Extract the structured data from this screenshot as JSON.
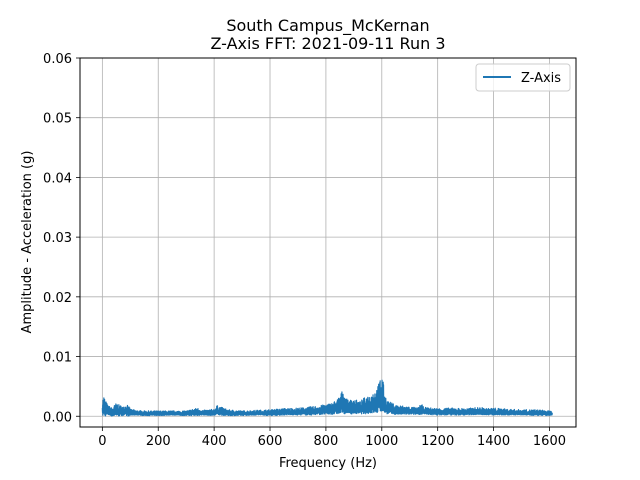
{
  "chart_data": {
    "type": "line",
    "title_line1": "South Campus_McKernan",
    "title_line2": "Z-Axis FFT: 2021-09-11 Run 3",
    "xlabel": "Frequency (Hz)",
    "ylabel": "Amplitude - Acceleration (g)",
    "xlim": [
      -80,
      1695
    ],
    "ylim": [
      -0.0018,
      0.06
    ],
    "xticks": [
      0,
      200,
      400,
      600,
      800,
      1000,
      1200,
      1400,
      1600
    ],
    "xtick_labels": [
      "0",
      "200",
      "400",
      "600",
      "800",
      "1000",
      "1200",
      "1400",
      "1600"
    ],
    "yticks": [
      0.0,
      0.01,
      0.02,
      0.03,
      0.04,
      0.05,
      0.06
    ],
    "ytick_labels": [
      "0.00",
      "0.01",
      "0.02",
      "0.03",
      "0.04",
      "0.05",
      "0.06"
    ],
    "grid": true,
    "legend_position": "top-right",
    "series": [
      {
        "name": "Z-Axis",
        "color": "#1f77b4",
        "envelope_x": [
          0,
          5,
          10,
          20,
          35,
          50,
          60,
          75,
          90,
          100,
          120,
          150,
          200,
          250,
          300,
          340,
          360,
          400,
          410,
          450,
          500,
          550,
          600,
          650,
          700,
          750,
          780,
          800,
          820,
          840,
          850,
          860,
          870,
          880,
          900,
          920,
          940,
          960,
          980,
          990,
          995,
          1000,
          1005,
          1010,
          1020,
          1050,
          1100,
          1130,
          1140,
          1150,
          1200,
          1250,
          1300,
          1350,
          1380,
          1400,
          1450,
          1500,
          1550,
          1580,
          1600,
          1610
        ],
        "envelope_max": [
          0.0025,
          0.0035,
          0.0028,
          0.0018,
          0.0014,
          0.0022,
          0.0019,
          0.0016,
          0.0021,
          0.0012,
          0.001,
          0.0009,
          0.0009,
          0.0009,
          0.0009,
          0.0014,
          0.001,
          0.0012,
          0.0018,
          0.0011,
          0.0009,
          0.001,
          0.0011,
          0.0013,
          0.0014,
          0.0016,
          0.0018,
          0.002,
          0.0022,
          0.0028,
          0.0035,
          0.0044,
          0.0033,
          0.0026,
          0.003,
          0.0024,
          0.0032,
          0.0037,
          0.0045,
          0.0056,
          0.0065,
          0.0071,
          0.0058,
          0.0038,
          0.0026,
          0.0019,
          0.0016,
          0.0014,
          0.0022,
          0.0015,
          0.0013,
          0.0014,
          0.0013,
          0.0015,
          0.0013,
          0.0014,
          0.0012,
          0.0011,
          0.0011,
          0.001,
          0.0009,
          0.0008
        ],
        "envelope_min": [
          0.0,
          0.0001,
          0.0,
          0.0002,
          0.0,
          0.0001,
          0.0,
          0.0001,
          0.0,
          0.0001,
          0.0002,
          0.0001,
          0.0001,
          0.0002,
          0.0001,
          0.0001,
          0.0002,
          0.0001,
          0.0002,
          0.0001,
          0.0001,
          0.0002,
          0.0001,
          0.0002,
          0.0002,
          0.0002,
          0.0003,
          0.0003,
          0.0003,
          0.0004,
          0.0004,
          0.0005,
          0.0004,
          0.0004,
          0.0004,
          0.0004,
          0.0004,
          0.0005,
          0.0005,
          0.0006,
          0.0007,
          0.0008,
          0.0007,
          0.0005,
          0.0004,
          0.0003,
          0.0003,
          0.0003,
          0.0003,
          0.0003,
          0.0002,
          0.0002,
          0.0002,
          0.0003,
          0.0002,
          0.0002,
          0.0002,
          0.0002,
          0.0001,
          0.0001,
          0.0001,
          0.0001
        ]
      }
    ]
  }
}
